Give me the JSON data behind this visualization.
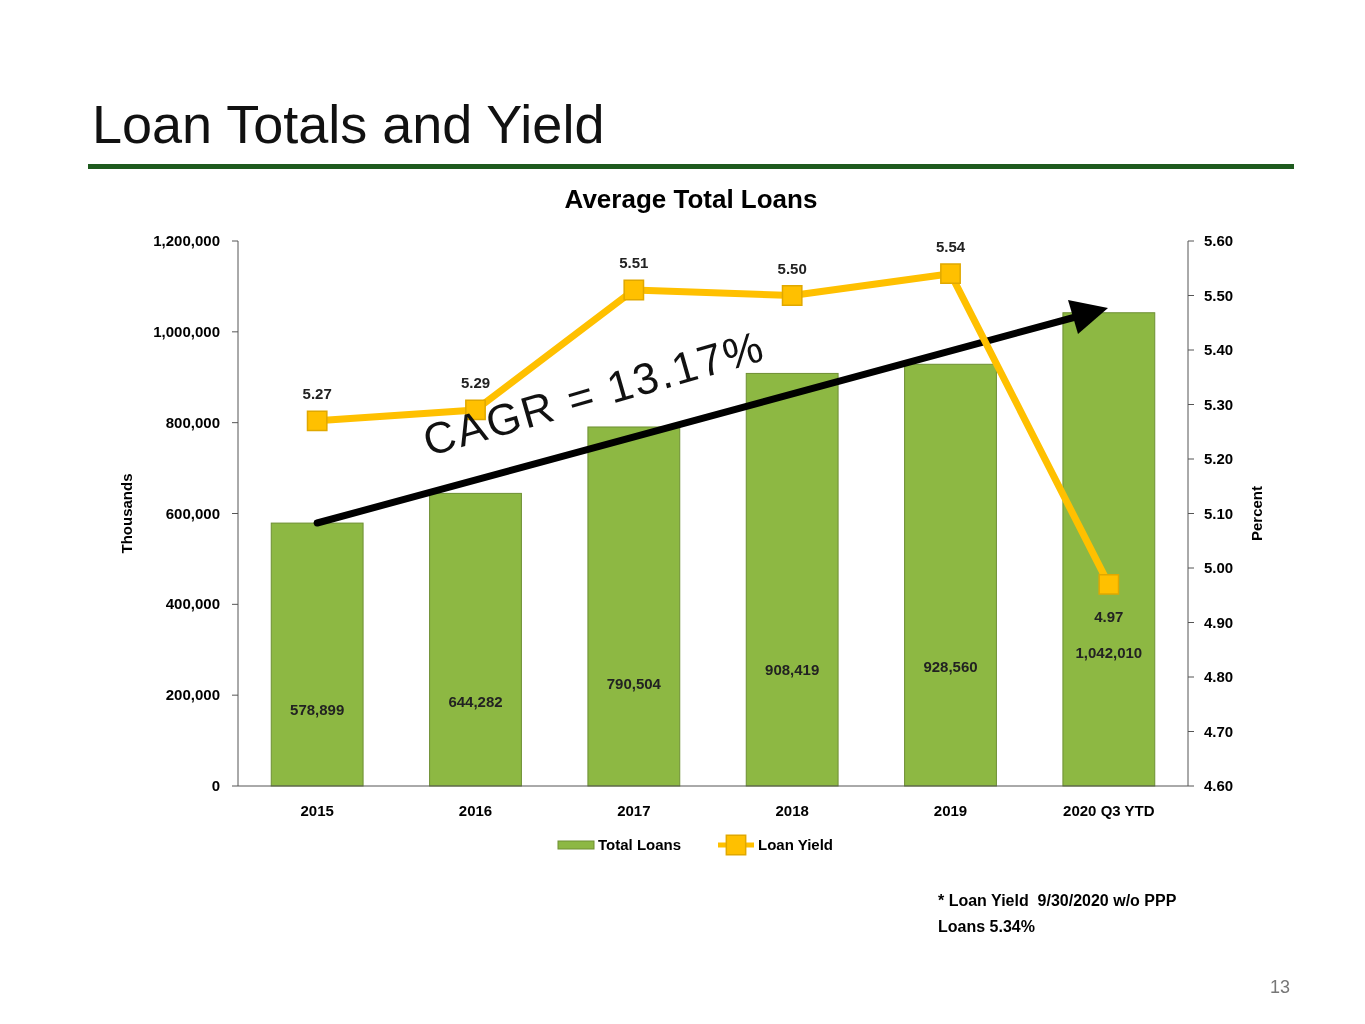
{
  "chart_data": {
    "type": "bar",
    "title": "Loan Totals and Yield",
    "subtitle": "Average Total Loans",
    "ylabel": "Thousands",
    "y2label": "Percent",
    "categories": [
      "2015",
      "2016",
      "2017",
      "2018",
      "2019",
      "2020 Q3 YTD"
    ],
    "series": [
      {
        "name": "Total Loans",
        "color": "#8db843",
        "values": [
          578899,
          644282,
          790504,
          908419,
          928560,
          1042010
        ],
        "value_labels": [
          "578,899",
          "644,282",
          "790,504",
          "908,419",
          "928,560",
          "1,042,010"
        ]
      },
      {
        "name": "Loan Yield",
        "type": "line",
        "axis": "y2",
        "color": "#ffc000",
        "marker": "square",
        "values": [
          5.27,
          5.29,
          5.51,
          5.5,
          5.54,
          4.97
        ],
        "value_labels": [
          "5.27",
          "5.29",
          "5.51",
          "5.50",
          "5.54",
          "4.97"
        ]
      }
    ],
    "ylim": [
      0,
      1200000
    ],
    "yticks": [
      {
        "value": 0,
        "label": "0"
      },
      {
        "value": 200000,
        "label": "200,000"
      },
      {
        "value": 400000,
        "label": "400,000"
      },
      {
        "value": 600000,
        "label": "600,000"
      },
      {
        "value": 800000,
        "label": "800,000"
      },
      {
        "value": 1000000,
        "label": "1,000,000"
      },
      {
        "value": 1200000,
        "label": "1,200,000"
      }
    ],
    "y2lim": [
      4.6,
      5.6
    ],
    "y2ticks": [
      {
        "value": 4.6,
        "label": "4.60"
      },
      {
        "value": 4.7,
        "label": "4.70"
      },
      {
        "value": 4.8,
        "label": "4.80"
      },
      {
        "value": 4.9,
        "label": "4.90"
      },
      {
        "value": 5.0,
        "label": "5.00"
      },
      {
        "value": 5.1,
        "label": "5.10"
      },
      {
        "value": 5.2,
        "label": "5.20"
      },
      {
        "value": 5.3,
        "label": "5.30"
      },
      {
        "value": 5.4,
        "label": "5.40"
      },
      {
        "value": 5.5,
        "label": "5.50"
      },
      {
        "value": 5.6,
        "label": "5.60"
      }
    ],
    "legend": "bottom",
    "annotations": [
      "CAGR = 13.17%",
      "* Loan Yield  9/30/2020 w/o PPP Loans 5.34%",
      "13"
    ]
  }
}
